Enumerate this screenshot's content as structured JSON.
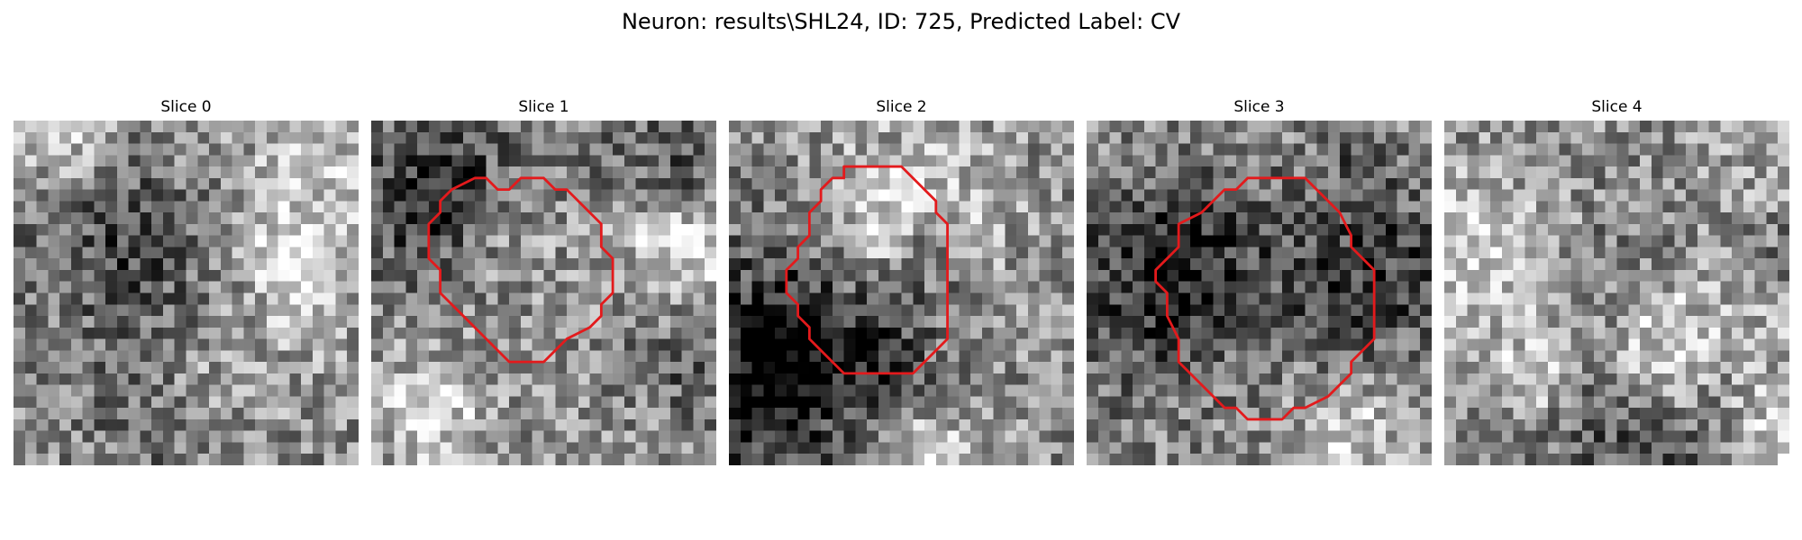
{
  "figure": {
    "title": "Neuron: results\\SHL24, ID: 725, Predicted Label: CV",
    "outline_color": "#e31a1c",
    "colormap": "grayscale"
  },
  "slices": [
    {
      "title": "Slice 0",
      "has_outline": false
    },
    {
      "title": "Slice 1",
      "has_outline": true
    },
    {
      "title": "Slice 2",
      "has_outline": true
    },
    {
      "title": "Slice 3",
      "has_outline": true
    },
    {
      "title": "Slice 4",
      "has_outline": false
    }
  ]
}
